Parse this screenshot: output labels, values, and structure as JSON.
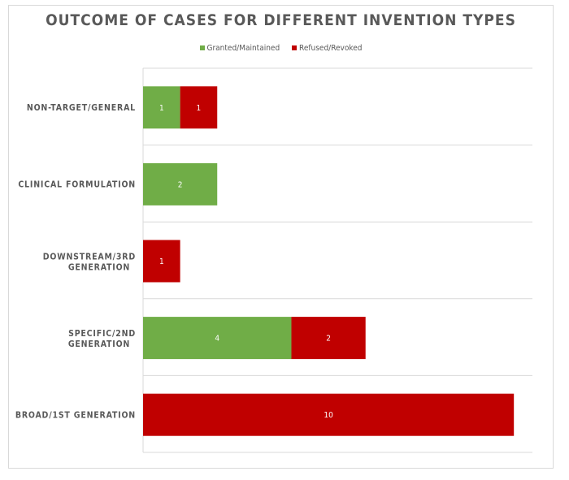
{
  "chart_data": {
    "type": "bar",
    "orientation": "horizontal",
    "stacked": true,
    "title": "OUTCOME OF CASES FOR DIFFERENT INVENTION TYPES",
    "categories": [
      "NON-TARGET/GENERAL",
      "CLINICAL FORMULATION",
      "DOWNSTREAM/3RD GENERATION",
      "SPECIFIC/2ND GENERATION",
      "BROAD/1ST GENERATION"
    ],
    "series": [
      {
        "name": "Granted/Maintained",
        "color": "#70ad47",
        "values": [
          1,
          2,
          0,
          4,
          0
        ]
      },
      {
        "name": "Refused/Revoked",
        "color": "#c00000",
        "values": [
          1,
          0,
          1,
          2,
          10
        ]
      }
    ],
    "xlim": [
      0,
      10.5
    ],
    "legend_position": "top",
    "grid": true
  }
}
